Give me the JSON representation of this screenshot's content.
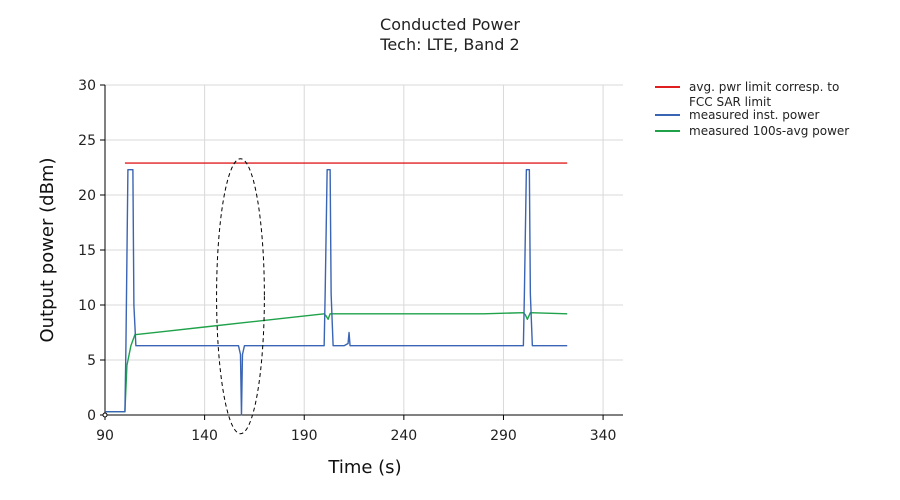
{
  "chart_data": {
    "type": "line",
    "title": "Conducted Power",
    "subtitle": "Tech: LTE, Band 2",
    "xlabel": "Time (s)",
    "ylabel": "Output power (dBm)",
    "xlim": [
      90,
      350
    ],
    "ylim": [
      0,
      30
    ],
    "xticks": [
      90,
      140,
      190,
      240,
      290,
      340
    ],
    "yticks": [
      0,
      5,
      10,
      15,
      20,
      25,
      30
    ],
    "grid": true,
    "legend_position": "top-right, outside plot",
    "series": [
      {
        "name": "avg. pwr limit corresp. to FCC SAR limit",
        "color": "#e02020",
        "points": [
          [
            100,
            22.9
          ],
          [
            322,
            22.9
          ]
        ]
      },
      {
        "name": "measured inst. power",
        "color": "#3a64b4",
        "points": [
          [
            90,
            0.3
          ],
          [
            100,
            0.3
          ],
          [
            100.5,
            6.2
          ],
          [
            101.5,
            22.3
          ],
          [
            104,
            22.3
          ],
          [
            104.5,
            10.0
          ],
          [
            105.5,
            6.3
          ],
          [
            110,
            6.3
          ],
          [
            120,
            6.3
          ],
          [
            130,
            6.3
          ],
          [
            140,
            6.3
          ],
          [
            150,
            6.3
          ],
          [
            157,
            6.3
          ],
          [
            158,
            5.5
          ],
          [
            158.5,
            0.0
          ],
          [
            159,
            5.5
          ],
          [
            160,
            6.3
          ],
          [
            170,
            6.3
          ],
          [
            180,
            6.3
          ],
          [
            190,
            6.3
          ],
          [
            198,
            6.3
          ],
          [
            200,
            6.3
          ],
          [
            200.5,
            11.0
          ],
          [
            201.5,
            22.3
          ],
          [
            203,
            22.3
          ],
          [
            203.5,
            11.0
          ],
          [
            204.5,
            6.3
          ],
          [
            210,
            6.3
          ],
          [
            212,
            6.5
          ],
          [
            212.5,
            7.5
          ],
          [
            213,
            6.3
          ],
          [
            220,
            6.3
          ],
          [
            240,
            6.3
          ],
          [
            260,
            6.3
          ],
          [
            280,
            6.3
          ],
          [
            300,
            6.3
          ],
          [
            300.5,
            11.0
          ],
          [
            301.5,
            22.3
          ],
          [
            303,
            22.3
          ],
          [
            303.5,
            11.0
          ],
          [
            304.5,
            6.3
          ],
          [
            310,
            6.3
          ],
          [
            322,
            6.3
          ]
        ]
      },
      {
        "name": "measured 100s-avg power",
        "color": "#1fa24a",
        "points": [
          [
            90,
            0.3
          ],
          [
            100,
            0.3
          ],
          [
            101,
            4.5
          ],
          [
            103,
            6.3
          ],
          [
            104,
            6.8
          ],
          [
            105,
            7.3
          ],
          [
            120,
            7.6
          ],
          [
            140,
            8.0
          ],
          [
            160,
            8.4
          ],
          [
            180,
            8.8
          ],
          [
            200,
            9.2
          ],
          [
            201,
            9.0
          ],
          [
            202,
            8.7
          ],
          [
            203,
            9.2
          ],
          [
            240,
            9.2
          ],
          [
            280,
            9.2
          ],
          [
            300,
            9.3
          ],
          [
            301,
            9.1
          ],
          [
            302,
            8.7
          ],
          [
            303.5,
            9.3
          ],
          [
            322,
            9.2
          ]
        ]
      }
    ],
    "annotation": {
      "type": "dashed-ellipse",
      "center": [
        158,
        10.8
      ],
      "radius_x": 12,
      "radius_y": 12.5
    }
  }
}
